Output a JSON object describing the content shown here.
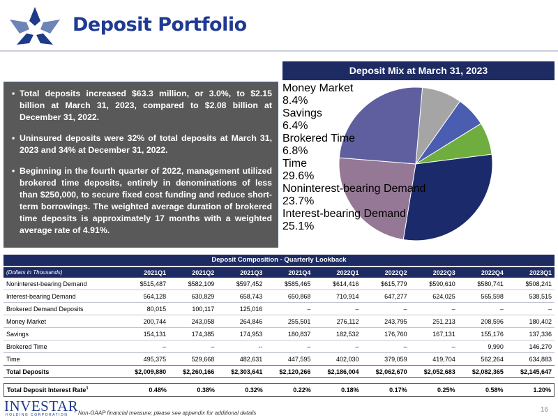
{
  "header": {
    "title": "Deposit Portfolio"
  },
  "bullets": [
    "Total deposits increased $63.3 million, or 3.0%, to $2.15 billion at March 31, 2023, compared to $2.08 billion at December 31, 2022.",
    "Uninsured deposits were 32% of total deposits at March 31, 2023 and 34% at December 31, 2022.",
    "Beginning in the fourth quarter of 2022, management utilized brokered time deposits, entirely in denominations of less than $250,000, to secure fixed cost funding and reduce short-term borrowings. The weighted average duration of brokered time deposits is approximately 17 months with a weighted average rate of 4.91%."
  ],
  "chart_data": {
    "type": "pie",
    "title": "Deposit Mix at March 31, 2023",
    "categories": [
      "Money Market",
      "Savings",
      "Brokered Time",
      "Time",
      "Noninterest-bearing Demand",
      "Interest-bearing Demand"
    ],
    "values": [
      8.4,
      6.4,
      6.8,
      29.6,
      23.7,
      25.1
    ],
    "value_labels": [
      "8.4%",
      "6.4%",
      "6.8%",
      "29.6%",
      "23.7%",
      "25.1%"
    ],
    "colors": [
      "#a5a5a5",
      "#4a5db0",
      "#6fae3e",
      "#1b2a6b",
      "#957895",
      "#5f5f9f"
    ]
  },
  "table": {
    "title": "Deposit Composition - Quarterly Lookback",
    "header": [
      "(Dollars in Thousands)",
      "2021Q1",
      "2021Q2",
      "2021Q3",
      "2021Q4",
      "2022Q1",
      "2022Q2",
      "2022Q3",
      "2022Q4",
      "2023Q1"
    ],
    "rows": [
      [
        "Noninterest-bearing Demand",
        "$515,487",
        "$582,109",
        "$597,452",
        "$585,465",
        "$614,416",
        "$615,779",
        "$590,610",
        "$580,741",
        "$508,241"
      ],
      [
        "Interest-bearing Demand",
        "564,128",
        "630,829",
        "658,743",
        "650,868",
        "710,914",
        "647,277",
        "624,025",
        "565,598",
        "538,515"
      ],
      [
        "Brokered Demand Deposits",
        "80,015",
        "100,117",
        "125,016",
        "–",
        "–",
        "–",
        "–",
        "–",
        "–"
      ],
      [
        "Money Market",
        "200,744",
        "243,058",
        "264,846",
        "255,501",
        "276,112",
        "243,795",
        "251,213",
        "208,596",
        "180,402"
      ],
      [
        "Savings",
        "154,131",
        "174,385",
        "174,953",
        "180,837",
        "182,532",
        "176,760",
        "167,131",
        "155,176",
        "137,336"
      ],
      [
        "Brokered Time",
        "–",
        "–",
        "--",
        "–",
        "–",
        "–",
        "–",
        "9,990",
        "146,270"
      ],
      [
        "Time",
        "495,375",
        "529,668",
        "482,631",
        "447,595",
        "402,030",
        "379,059",
        "419,704",
        "562,264",
        "634,883"
      ],
      [
        "Total Deposits",
        "$2,009,880",
        "$2,260,166",
        "$2,303,641",
        "$2,120,266",
        "$2,186,004",
        "$2,062,670",
        "$2,052,683",
        "$2,082,365",
        "$2,145,647"
      ]
    ],
    "rate_row": {
      "label": "Total Deposit Interest Rate",
      "note": "1",
      "values": [
        "0.48%",
        "0.38%",
        "0.32%",
        "0.22%",
        "0.18%",
        "0.17%",
        "0.25%",
        "0.58%",
        "1.20%"
      ]
    }
  },
  "footer": {
    "logo": "INVESTAR",
    "logo_sub": "HOLDING CORPORATION",
    "footnote_mark": "1",
    "footnote": "Non-GAAP financial measure; please see appendix for additional details",
    "page": "16"
  }
}
